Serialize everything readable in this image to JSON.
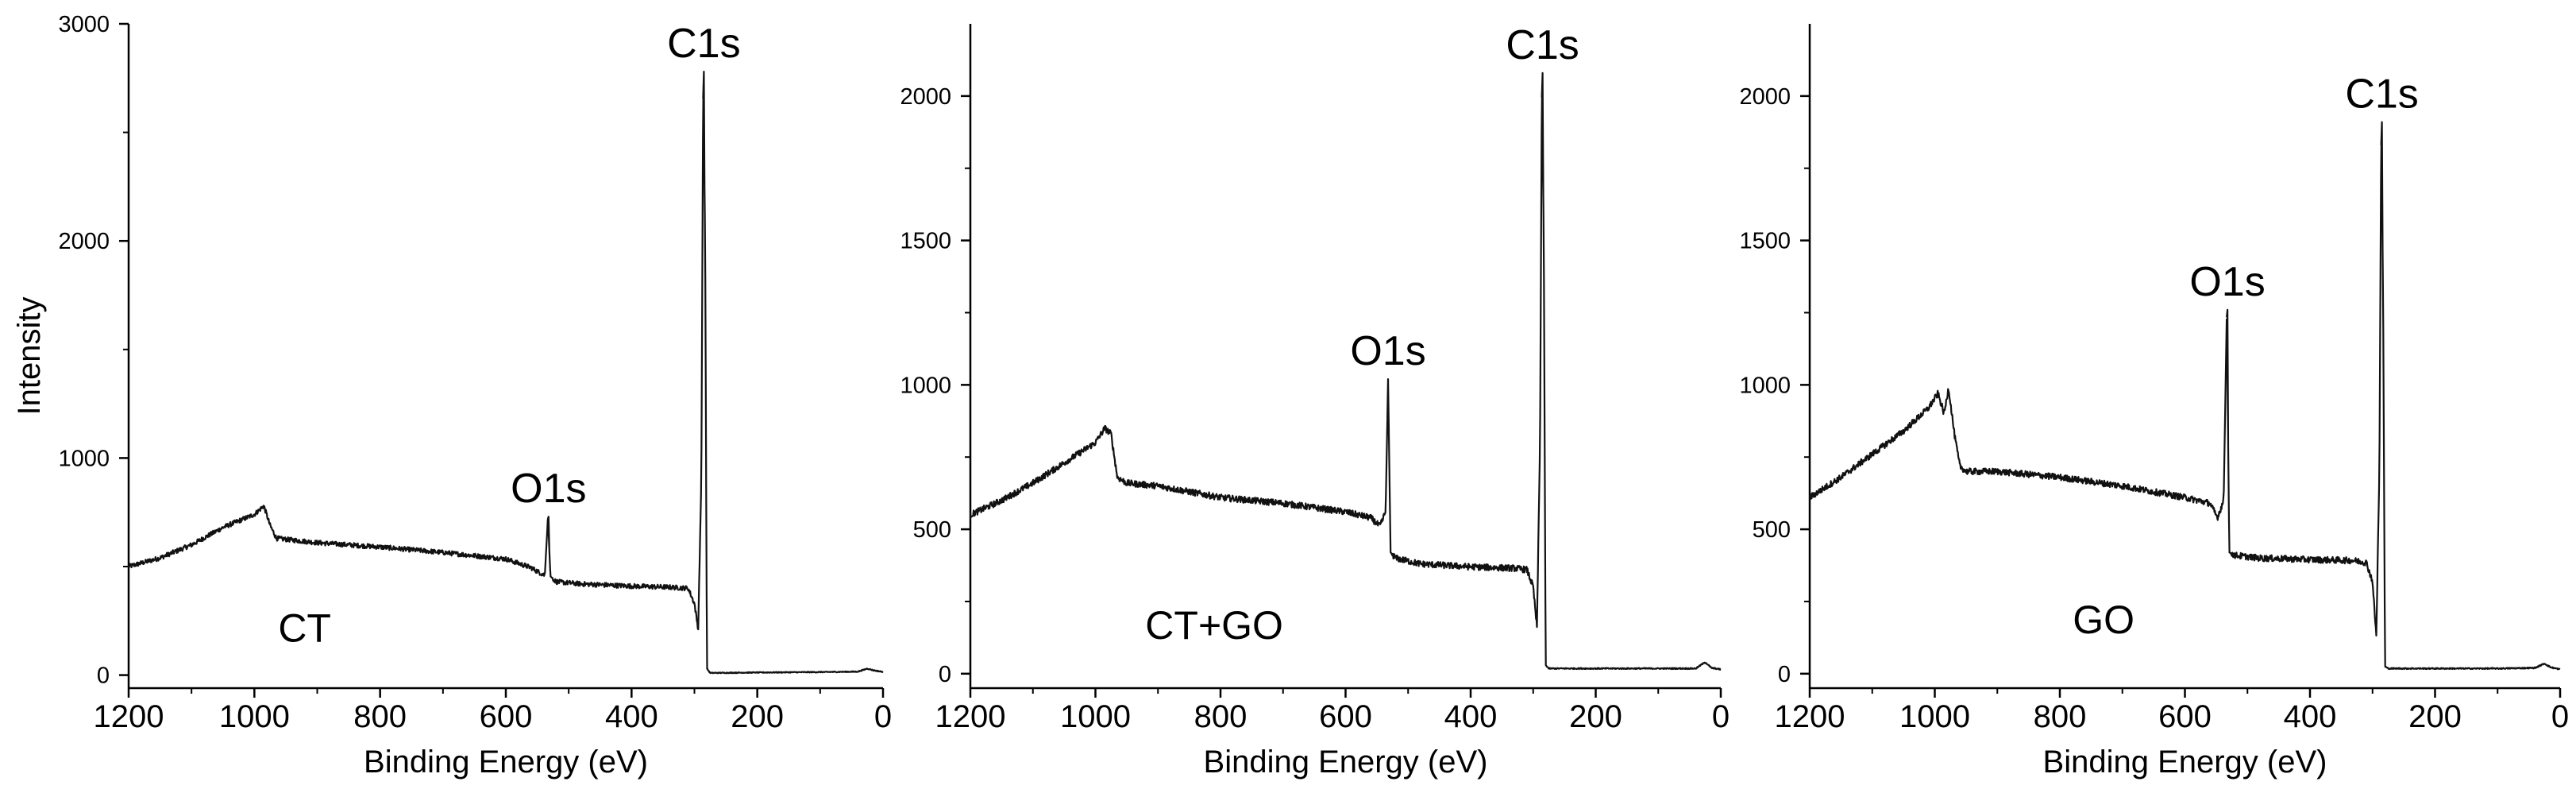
{
  "chart_data": [
    {
      "type": "line",
      "xlabel": "Binding Energy (eV)",
      "ylabel": "Intensity",
      "xlim": [
        1200,
        0
      ],
      "ylim": [
        -60,
        3000
      ],
      "xticks": [
        1200,
        1000,
        800,
        600,
        400,
        200,
        0
      ],
      "xtick_labels": [
        "1200",
        "1000",
        "800",
        "600",
        "400",
        "200",
        "0"
      ],
      "yticks": [
        0,
        1000,
        2000,
        3000
      ],
      "ytick_labels": [
        "0",
        "1000",
        "2000",
        "3000"
      ],
      "sample_label": "CT",
      "sample_label_at": [
        920,
        220
      ],
      "peaks": [
        {
          "label": "O1s",
          "x": 532,
          "y": 730
        },
        {
          "label": "C1s",
          "x": 285,
          "y": 2780
        }
      ],
      "series": [
        {
          "name": "CT",
          "points": [
            [
              1200,
              500
            ],
            [
              1150,
              540
            ],
            [
              1100,
              600
            ],
            [
              1050,
              680
            ],
            [
              1000,
              740
            ],
            [
              985,
              780
            ],
            [
              975,
              690
            ],
            [
              965,
              630
            ],
            [
              900,
              610
            ],
            [
              800,
              590
            ],
            [
              700,
              565
            ],
            [
              600,
              535
            ],
            [
              560,
              495
            ],
            [
              545,
              470
            ],
            [
              538,
              460
            ],
            [
              533,
              730
            ],
            [
              529,
              455
            ],
            [
              520,
              430
            ],
            [
              480,
              420
            ],
            [
              440,
              415
            ],
            [
              400,
              410
            ],
            [
              340,
              405
            ],
            [
              310,
              400
            ],
            [
              300,
              330
            ],
            [
              294,
              210
            ],
            [
              289,
              900
            ],
            [
              286,
              2780
            ],
            [
              283,
              2000
            ],
            [
              280,
              30
            ],
            [
              275,
              10
            ],
            [
              200,
              12
            ],
            [
              100,
              14
            ],
            [
              40,
              16
            ],
            [
              25,
              30
            ],
            [
              15,
              22
            ],
            [
              0,
              15
            ]
          ]
        }
      ]
    },
    {
      "type": "line",
      "xlabel": "Binding Energy (eV)",
      "ylabel": "",
      "xlim": [
        1200,
        0
      ],
      "ylim": [
        -50,
        2250
      ],
      "xticks": [
        1200,
        1000,
        800,
        600,
        400,
        200,
        0
      ],
      "xtick_labels": [
        "1200",
        "1000",
        "800",
        "600",
        "400",
        "200",
        "0"
      ],
      "yticks": [
        0,
        500,
        1000,
        1500,
        2000
      ],
      "ytick_labels": [
        "0",
        "500",
        "1000",
        "1500",
        "2000"
      ],
      "sample_label": "CT+GO",
      "sample_label_at": [
        810,
        170
      ],
      "peaks": [
        {
          "label": "O1s",
          "x": 532,
          "y": 1020
        },
        {
          "label": "C1s",
          "x": 285,
          "y": 2080
        }
      ],
      "series": [
        {
          "name": "CT+GO",
          "points": [
            [
              1200,
              550
            ],
            [
              1150,
              600
            ],
            [
              1100,
              660
            ],
            [
              1050,
              730
            ],
            [
              1000,
              800
            ],
            [
              985,
              850
            ],
            [
              975,
              830
            ],
            [
              965,
              680
            ],
            [
              950,
              660
            ],
            [
              900,
              650
            ],
            [
              800,
              610
            ],
            [
              700,
              590
            ],
            [
              600,
              560
            ],
            [
              560,
              540
            ],
            [
              545,
              510
            ],
            [
              536,
              560
            ],
            [
              532,
              1020
            ],
            [
              528,
              420
            ],
            [
              520,
              400
            ],
            [
              480,
              380
            ],
            [
              440,
              375
            ],
            [
              400,
              370
            ],
            [
              330,
              365
            ],
            [
              310,
              360
            ],
            [
              300,
              300
            ],
            [
              294,
              160
            ],
            [
              289,
              800
            ],
            [
              286,
              2080
            ],
            [
              283,
              1500
            ],
            [
              280,
              30
            ],
            [
              275,
              18
            ],
            [
              200,
              18
            ],
            [
              100,
              18
            ],
            [
              40,
              18
            ],
            [
              25,
              40
            ],
            [
              15,
              20
            ],
            [
              0,
              15
            ]
          ]
        }
      ]
    },
    {
      "type": "line",
      "xlabel": "Binding Energy (eV)",
      "ylabel": "",
      "xlim": [
        1200,
        0
      ],
      "ylim": [
        -50,
        2250
      ],
      "xticks": [
        1200,
        1000,
        800,
        600,
        400,
        200,
        0
      ],
      "xtick_labels": [
        "1200",
        "1000",
        "800",
        "600",
        "400",
        "200",
        "0"
      ],
      "yticks": [
        0,
        500,
        1000,
        1500,
        2000
      ],
      "ytick_labels": [
        "0",
        "500",
        "1000",
        "1500",
        "2000"
      ],
      "sample_label": "GO",
      "sample_label_at": [
        730,
        190
      ],
      "peaks": [
        {
          "label": "O1s",
          "x": 532,
          "y": 1260
        },
        {
          "label": "C1s",
          "x": 285,
          "y": 1910
        }
      ],
      "series": [
        {
          "name": "GO",
          "points": [
            [
              1200,
              610
            ],
            [
              1150,
              680
            ],
            [
              1100,
              760
            ],
            [
              1050,
              840
            ],
            [
              1010,
              920
            ],
            [
              995,
              970
            ],
            [
              985,
              900
            ],
            [
              978,
              990
            ],
            [
              968,
              820
            ],
            [
              960,
              720
            ],
            [
              950,
              700
            ],
            [
              900,
              700
            ],
            [
              800,
              680
            ],
            [
              700,
              650
            ],
            [
              600,
              610
            ],
            [
              560,
              590
            ],
            [
              548,
              540
            ],
            [
              538,
              600
            ],
            [
              533,
              1260
            ],
            [
              529,
              420
            ],
            [
              520,
              410
            ],
            [
              480,
              400
            ],
            [
              440,
              398
            ],
            [
              400,
              395
            ],
            [
              330,
              392
            ],
            [
              310,
              385
            ],
            [
              300,
              320
            ],
            [
              294,
              130
            ],
            [
              289,
              700
            ],
            [
              286,
              1910
            ],
            [
              283,
              1300
            ],
            [
              280,
              25
            ],
            [
              275,
              18
            ],
            [
              200,
              18
            ],
            [
              100,
              18
            ],
            [
              40,
              20
            ],
            [
              25,
              35
            ],
            [
              15,
              22
            ],
            [
              0,
              15
            ]
          ]
        }
      ]
    }
  ]
}
